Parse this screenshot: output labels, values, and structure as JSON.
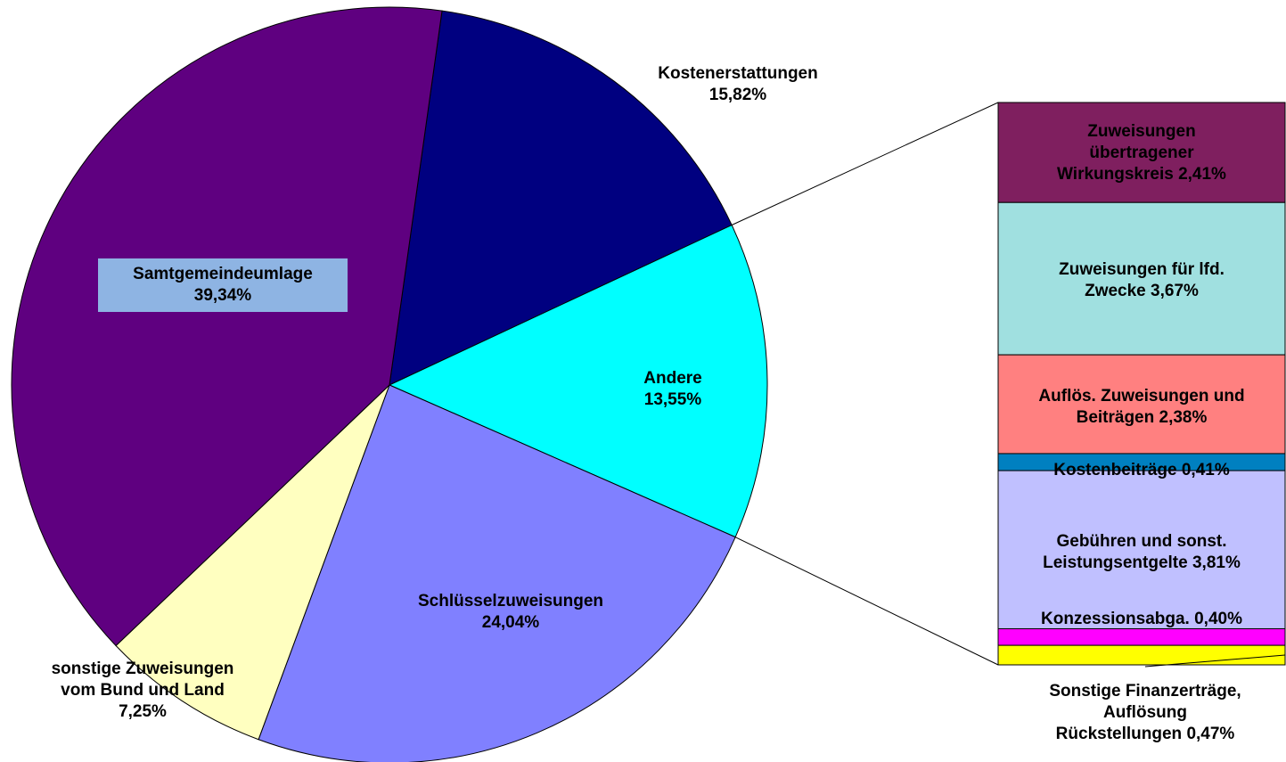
{
  "chart_data": {
    "type": "pie-of-bar",
    "categories": [
      "Kostenerstattungen",
      "Andere",
      "Schlüsselzuweisungen",
      "sonstige Zuweisungen\nvom Bund und Land",
      "Samtgemeindeumlage"
    ],
    "values": [
      15.82,
      13.55,
      24.04,
      7.25,
      39.34
    ],
    "value_labels": [
      "15,82%",
      "13,55%",
      "24,04%",
      "7,25%",
      "39,34%"
    ],
    "colors": [
      "#000080",
      "#00ffff",
      "#8080ff",
      "#ffffc0",
      "#5f0080"
    ],
    "breakdown": {
      "categories": [
        "Zuweisungen\nübertragener\nWirkungskreis",
        "Zuweisungen für lfd.\nZwecke",
        "Auflös. Zuweisungen und\nBeiträgen",
        "Kostenbeiträge",
        "Gebühren und sonst.\nLeistungsentgelte",
        "Konzessionsabga.",
        "Sonstige Finanzerträge,\nAuflösung\nRückstellungen"
      ],
      "values": [
        2.41,
        3.67,
        2.38,
        0.41,
        3.81,
        0.4,
        0.47
      ],
      "value_labels": [
        "2,41%",
        "3,67%",
        "2,38%",
        "0,41%",
        "3,81%",
        "0,40%",
        "0,47%"
      ],
      "colors": [
        "#7f1f5f",
        "#a0e0e0",
        "#ff8080",
        "#0080c0",
        "#c0c0ff",
        "#ff00ff",
        "#ffff00"
      ]
    }
  }
}
